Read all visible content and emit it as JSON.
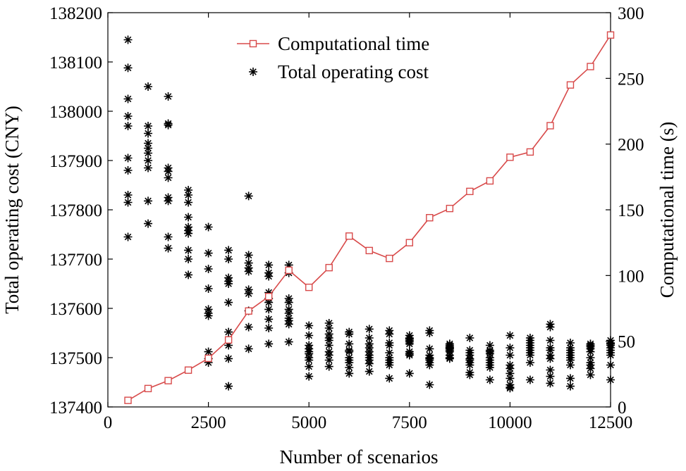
{
  "chart_data": {
    "type": "scatter",
    "xlabel": "Number of scenarios",
    "ylabel_left": "Total operating cost (CNY)",
    "ylabel_right": "Computational time (s)",
    "xlim": [
      0,
      12500
    ],
    "ylim_left": [
      137400,
      138200
    ],
    "ylim_right": [
      0,
      300
    ],
    "x_ticks": [
      0,
      2500,
      5000,
      7500,
      10000,
      12500
    ],
    "y_left_ticks": [
      137400,
      137500,
      137600,
      137700,
      137800,
      137900,
      138000,
      138100,
      138200
    ],
    "y_right_ticks": [
      0,
      50,
      100,
      150,
      200,
      250,
      300
    ],
    "legend": {
      "position": "top-center",
      "entries": [
        "Computational time",
        "Total operating cost"
      ]
    },
    "colors": {
      "time_line": "#d84a4a",
      "cost_marker": "#000000"
    },
    "series": [
      {
        "name": "Computational time",
        "type": "line",
        "axis": "right",
        "marker": "square",
        "x": [
          500,
          1000,
          1500,
          2000,
          2500,
          3000,
          3500,
          4000,
          4500,
          5000,
          5500,
          6000,
          6500,
          7000,
          7500,
          8000,
          8500,
          9000,
          9500,
          10000,
          10500,
          11000,
          11500,
          12000,
          12500
        ],
        "y": [
          5,
          14,
          20,
          28,
          37,
          51,
          73,
          84,
          104,
          91,
          106,
          130,
          119,
          113,
          125,
          144,
          151,
          164,
          172,
          190,
          194,
          214,
          245,
          259,
          283
        ]
      },
      {
        "name": "Total operating cost",
        "type": "scatter",
        "axis": "left",
        "marker": "asterisk",
        "points": [
          [
            500,
            138145
          ],
          [
            500,
            138088
          ],
          [
            500,
            138025
          ],
          [
            500,
            137990
          ],
          [
            500,
            137970
          ],
          [
            500,
            137905
          ],
          [
            500,
            137880
          ],
          [
            500,
            137830
          ],
          [
            500,
            137815
          ],
          [
            500,
            137745
          ],
          [
            1000,
            138050
          ],
          [
            1000,
            137970
          ],
          [
            1000,
            137955
          ],
          [
            1000,
            137935
          ],
          [
            1000,
            137925
          ],
          [
            1000,
            137915
          ],
          [
            1000,
            137900
          ],
          [
            1000,
            137885
          ],
          [
            1000,
            137818
          ],
          [
            1000,
            137772
          ],
          [
            1500,
            138030
          ],
          [
            1500,
            137975
          ],
          [
            1500,
            137972
          ],
          [
            1500,
            137885
          ],
          [
            1500,
            137878
          ],
          [
            1500,
            137865
          ],
          [
            1500,
            137825
          ],
          [
            1500,
            137818
          ],
          [
            1500,
            137745
          ],
          [
            1500,
            137722
          ],
          [
            2000,
            137840
          ],
          [
            2000,
            137830
          ],
          [
            2000,
            137815
          ],
          [
            2000,
            137785
          ],
          [
            2000,
            137765
          ],
          [
            2000,
            137758
          ],
          [
            2000,
            137752
          ],
          [
            2000,
            137718
          ],
          [
            2000,
            137700
          ],
          [
            2000,
            137668
          ],
          [
            2500,
            137765
          ],
          [
            2500,
            137712
          ],
          [
            2500,
            137680
          ],
          [
            2500,
            137640
          ],
          [
            2500,
            137598
          ],
          [
            2500,
            137590
          ],
          [
            2500,
            137585
          ],
          [
            2500,
            137512
          ],
          [
            2500,
            137498
          ],
          [
            2500,
            137490
          ],
          [
            3000,
            137718
          ],
          [
            3000,
            137700
          ],
          [
            3000,
            137662
          ],
          [
            3000,
            137655
          ],
          [
            3000,
            137650
          ],
          [
            3000,
            137612
          ],
          [
            3000,
            137552
          ],
          [
            3000,
            137525
          ],
          [
            3000,
            137498
          ],
          [
            3000,
            137442
          ],
          [
            3500,
            137828
          ],
          [
            3500,
            137708
          ],
          [
            3500,
            137682
          ],
          [
            3500,
            137675
          ],
          [
            3500,
            137638
          ],
          [
            3500,
            137630
          ],
          [
            3500,
            137595
          ],
          [
            3500,
            137562
          ],
          [
            3500,
            137518
          ],
          [
            3500,
            137692
          ],
          [
            4000,
            137688
          ],
          [
            4000,
            137665
          ],
          [
            4000,
            137632
          ],
          [
            4000,
            137620
          ],
          [
            4000,
            137598
          ],
          [
            4000,
            137578
          ],
          [
            4000,
            137560
          ],
          [
            4000,
            137528
          ],
          [
            4000,
            137672
          ],
          [
            4000,
            137612
          ],
          [
            4500,
            137688
          ],
          [
            4500,
            137672
          ],
          [
            4500,
            137620
          ],
          [
            4500,
            137598
          ],
          [
            4500,
            137590
          ],
          [
            4500,
            137580
          ],
          [
            4500,
            137575
          ],
          [
            4500,
            137568
          ],
          [
            4500,
            137532
          ],
          [
            4500,
            137612
          ],
          [
            5000,
            137565
          ],
          [
            5000,
            137545
          ],
          [
            5000,
            137525
          ],
          [
            5000,
            137512
          ],
          [
            5000,
            137508
          ],
          [
            5000,
            137500
          ],
          [
            5000,
            137495
          ],
          [
            5000,
            137482
          ],
          [
            5000,
            137462
          ],
          [
            5000,
            137518
          ],
          [
            5500,
            137570
          ],
          [
            5500,
            137548
          ],
          [
            5500,
            137540
          ],
          [
            5500,
            137535
          ],
          [
            5500,
            137525
          ],
          [
            5500,
            137512
          ],
          [
            5500,
            137505
          ],
          [
            5500,
            137495
          ],
          [
            5500,
            137482
          ],
          [
            5500,
            137560
          ],
          [
            6000,
            137552
          ],
          [
            6000,
            137548
          ],
          [
            6000,
            137528
          ],
          [
            6000,
            137512
          ],
          [
            6000,
            137500
          ],
          [
            6000,
            137495
          ],
          [
            6000,
            137490
          ],
          [
            6000,
            137480
          ],
          [
            6000,
            137468
          ],
          [
            6000,
            137515
          ],
          [
            6500,
            137558
          ],
          [
            6500,
            137540
          ],
          [
            6500,
            137528
          ],
          [
            6500,
            137520
          ],
          [
            6500,
            137505
          ],
          [
            6500,
            137500
          ],
          [
            6500,
            137495
          ],
          [
            6500,
            137488
          ],
          [
            6500,
            137472
          ],
          [
            6500,
            137512
          ],
          [
            7000,
            137555
          ],
          [
            7000,
            137548
          ],
          [
            7000,
            137530
          ],
          [
            7000,
            137525
          ],
          [
            7000,
            137500
          ],
          [
            7000,
            137495
          ],
          [
            7000,
            137490
          ],
          [
            7000,
            137485
          ],
          [
            7000,
            137458
          ],
          [
            7000,
            137510
          ],
          [
            7500,
            137545
          ],
          [
            7500,
            137538
          ],
          [
            7500,
            137532
          ],
          [
            7500,
            137528
          ],
          [
            7500,
            137512
          ],
          [
            7500,
            137505
          ],
          [
            7500,
            137468
          ],
          [
            7500,
            137540
          ],
          [
            7500,
            137535
          ],
          [
            7500,
            137508
          ],
          [
            8000,
            137555
          ],
          [
            8000,
            137550
          ],
          [
            8000,
            137518
          ],
          [
            8000,
            137505
          ],
          [
            8000,
            137500
          ],
          [
            8000,
            137495
          ],
          [
            8000,
            137490
          ],
          [
            8000,
            137485
          ],
          [
            8000,
            137445
          ],
          [
            8000,
            137498
          ],
          [
            8500,
            137528
          ],
          [
            8500,
            137525
          ],
          [
            8500,
            137522
          ],
          [
            8500,
            137518
          ],
          [
            8500,
            137515
          ],
          [
            8500,
            137505
          ],
          [
            8500,
            137500
          ],
          [
            8500,
            137498
          ],
          [
            8500,
            137512
          ],
          [
            8500,
            137520
          ],
          [
            9000,
            137540
          ],
          [
            9000,
            137515
          ],
          [
            9000,
            137505
          ],
          [
            9000,
            137498
          ],
          [
            9000,
            137495
          ],
          [
            9000,
            137490
          ],
          [
            9000,
            137485
          ],
          [
            9000,
            137470
          ],
          [
            9000,
            137465
          ],
          [
            9000,
            137510
          ],
          [
            9500,
            137525
          ],
          [
            9500,
            137515
          ],
          [
            9500,
            137508
          ],
          [
            9500,
            137500
          ],
          [
            9500,
            137495
          ],
          [
            9500,
            137490
          ],
          [
            9500,
            137485
          ],
          [
            9500,
            137480
          ],
          [
            9500,
            137455
          ],
          [
            9500,
            137512
          ],
          [
            10000,
            137545
          ],
          [
            10000,
            137520
          ],
          [
            10000,
            137505
          ],
          [
            10000,
            137485
          ],
          [
            10000,
            137478
          ],
          [
            10000,
            137468
          ],
          [
            10000,
            137458
          ],
          [
            10000,
            137445
          ],
          [
            10000,
            137440
          ],
          [
            10000,
            137438
          ],
          [
            10500,
            137540
          ],
          [
            10500,
            137535
          ],
          [
            10500,
            137530
          ],
          [
            10500,
            137525
          ],
          [
            10500,
            137520
          ],
          [
            10500,
            137510
          ],
          [
            10500,
            137505
          ],
          [
            10500,
            137490
          ],
          [
            10500,
            137455
          ],
          [
            10500,
            137515
          ],
          [
            11000,
            137568
          ],
          [
            11000,
            137562
          ],
          [
            11000,
            137535
          ],
          [
            11000,
            137515
          ],
          [
            11000,
            137505
          ],
          [
            11000,
            137498
          ],
          [
            11000,
            137475
          ],
          [
            11000,
            137462
          ],
          [
            11000,
            137448
          ],
          [
            11000,
            137520
          ],
          [
            11500,
            137530
          ],
          [
            11500,
            137520
          ],
          [
            11500,
            137510
          ],
          [
            11500,
            137505
          ],
          [
            11500,
            137500
          ],
          [
            11500,
            137495
          ],
          [
            11500,
            137485
          ],
          [
            11500,
            137458
          ],
          [
            11500,
            137442
          ],
          [
            11500,
            137515
          ],
          [
            12000,
            137528
          ],
          [
            12000,
            137522
          ],
          [
            12000,
            137518
          ],
          [
            12000,
            137512
          ],
          [
            12000,
            137500
          ],
          [
            12000,
            137490
          ],
          [
            12000,
            137485
          ],
          [
            12000,
            137478
          ],
          [
            12000,
            137465
          ],
          [
            12000,
            137525
          ],
          [
            12500,
            137535
          ],
          [
            12500,
            137530
          ],
          [
            12500,
            137525
          ],
          [
            12500,
            137520
          ],
          [
            12500,
            137515
          ],
          [
            12500,
            137510
          ],
          [
            12500,
            137505
          ],
          [
            12500,
            137485
          ],
          [
            12500,
            137455
          ],
          [
            12500,
            137528
          ]
        ]
      }
    ]
  }
}
